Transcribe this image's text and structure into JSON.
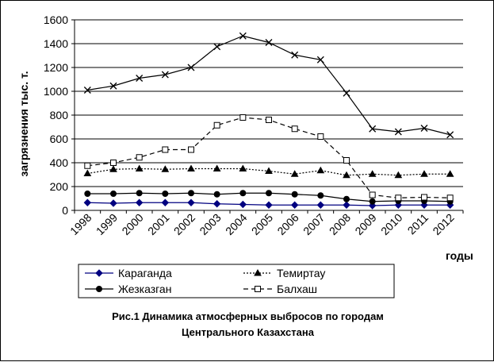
{
  "chart_data": {
    "type": "line",
    "ylabel": "загрязнения тыс. т.",
    "xlabel": "годы",
    "ylim": [
      0,
      1600
    ],
    "yticks": [
      0,
      200,
      400,
      600,
      800,
      1000,
      1200,
      1400,
      1600
    ],
    "grid": "horizontal",
    "legend_position": "bottom",
    "categories": [
      "1998",
      "1999",
      "2000",
      "2001",
      "2002",
      "2003",
      "2004",
      "2005",
      "2006",
      "2007",
      "2008",
      "2009",
      "2010",
      "2011",
      "2012"
    ],
    "series": [
      {
        "name": "Караганда",
        "style": "solid",
        "marker": "diamond",
        "color": "#000080",
        "values": [
          65,
          60,
          65,
          65,
          65,
          55,
          50,
          45,
          45,
          45,
          45,
          40,
          45,
          45,
          45
        ]
      },
      {
        "name": "Темиртау",
        "style": "dotted",
        "marker": "triangle",
        "color": "#000000",
        "values": [
          310,
          345,
          350,
          345,
          350,
          350,
          350,
          330,
          305,
          335,
          295,
          305,
          295,
          305,
          305
        ]
      },
      {
        "name": "Жезказган",
        "style": "solid",
        "marker": "circle",
        "color": "#000000",
        "values": [
          140,
          140,
          145,
          140,
          145,
          135,
          145,
          145,
          135,
          125,
          95,
          75,
          80,
          80,
          75
        ]
      },
      {
        "name": "Балхаш",
        "style": "dashed",
        "marker": "square-open",
        "color": "#000000",
        "values": [
          375,
          400,
          445,
          510,
          510,
          715,
          780,
          760,
          685,
          620,
          420,
          130,
          105,
          110,
          105
        ]
      },
      {
        "name": "",
        "style": "solid",
        "marker": "x",
        "color": "#000000",
        "values": [
          1010,
          1045,
          1110,
          1140,
          1200,
          1375,
          1465,
          1410,
          1305,
          1265,
          985,
          685,
          660,
          690,
          635
        ]
      }
    ]
  },
  "caption": {
    "line1": "Рис.1 Динамика атмосферных выбросов по  городам",
    "line2": "Центрального Казахстана"
  }
}
